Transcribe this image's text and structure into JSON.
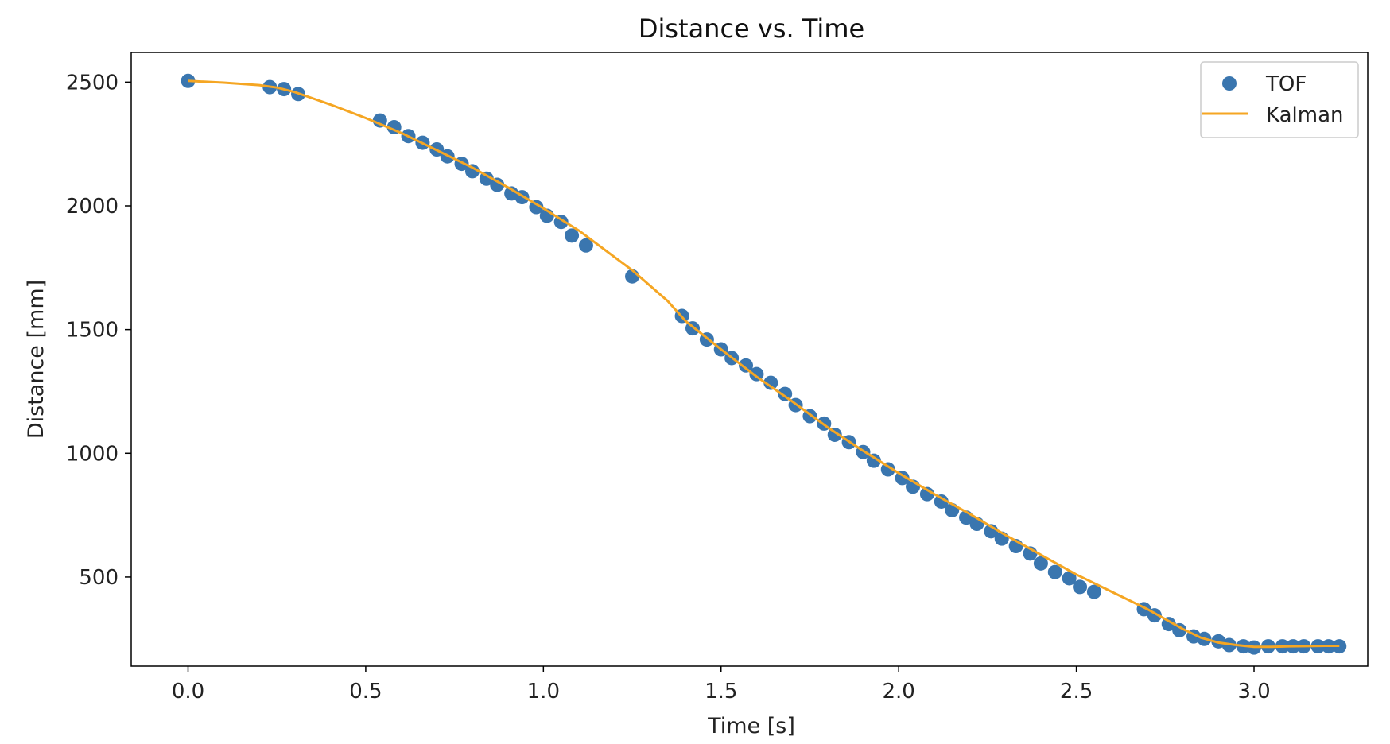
{
  "chart_data": {
    "type": "scatter",
    "title": "Distance vs. Time",
    "xlabel": "Time [s]",
    "ylabel": "Distance [mm]",
    "xlim": [
      -0.16,
      3.32
    ],
    "ylim": [
      140,
      2620
    ],
    "x_ticks": [
      0.0,
      0.5,
      1.0,
      1.5,
      2.0,
      2.5,
      3.0
    ],
    "x_tick_labels": [
      "0.0",
      "0.5",
      "1.0",
      "1.5",
      "2.0",
      "2.5",
      "3.0"
    ],
    "y_ticks": [
      500,
      1000,
      1500,
      2000,
      2500
    ],
    "y_tick_labels": [
      "500",
      "1000",
      "1500",
      "2000",
      "2500"
    ],
    "grid": false,
    "legend_position": "top-right",
    "series": [
      {
        "name": "TOF",
        "kind": "scatter",
        "color": "#3a76af",
        "x": [
          0.0,
          0.23,
          0.27,
          0.31,
          0.54,
          0.58,
          0.62,
          0.66,
          0.7,
          0.73,
          0.77,
          0.8,
          0.84,
          0.87,
          0.91,
          0.94,
          0.98,
          1.01,
          1.05,
          1.08,
          1.12,
          1.25,
          1.39,
          1.42,
          1.46,
          1.5,
          1.53,
          1.57,
          1.6,
          1.64,
          1.68,
          1.71,
          1.75,
          1.79,
          1.82,
          1.86,
          1.9,
          1.93,
          1.97,
          2.01,
          2.04,
          2.08,
          2.12,
          2.15,
          2.19,
          2.22,
          2.26,
          2.29,
          2.33,
          2.37,
          2.4,
          2.44,
          2.48,
          2.51,
          2.55,
          2.69,
          2.72,
          2.76,
          2.79,
          2.83,
          2.86,
          2.9,
          2.93,
          2.97,
          3.0,
          3.04,
          3.08,
          3.11,
          3.14,
          3.18,
          3.21,
          3.24
        ],
        "y": [
          2505,
          2480,
          2472,
          2452,
          2345,
          2318,
          2282,
          2255,
          2228,
          2200,
          2170,
          2140,
          2110,
          2085,
          2050,
          2035,
          1995,
          1960,
          1935,
          1880,
          1840,
          1715,
          1555,
          1505,
          1460,
          1420,
          1385,
          1355,
          1320,
          1285,
          1240,
          1195,
          1150,
          1120,
          1075,
          1045,
          1005,
          970,
          935,
          900,
          865,
          835,
          805,
          770,
          740,
          715,
          685,
          655,
          625,
          595,
          555,
          520,
          495,
          460,
          440,
          370,
          345,
          310,
          285,
          260,
          250,
          240,
          225,
          220,
          215,
          220,
          220,
          220,
          220,
          220,
          220,
          220
        ]
      },
      {
        "name": "Kalman",
        "kind": "line",
        "color": "#f5a623",
        "x": [
          0.0,
          0.1,
          0.2,
          0.25,
          0.3,
          0.4,
          0.5,
          0.6,
          0.7,
          0.8,
          0.9,
          1.0,
          1.1,
          1.25,
          1.35,
          1.4,
          1.5,
          1.6,
          1.7,
          1.8,
          1.9,
          2.0,
          2.1,
          2.2,
          2.3,
          2.4,
          2.5,
          2.6,
          2.7,
          2.8,
          2.85,
          2.9,
          2.95,
          3.0,
          3.05,
          3.1,
          3.2,
          3.24
        ],
        "y": [
          2505,
          2498,
          2488,
          2478,
          2460,
          2410,
          2355,
          2295,
          2225,
          2155,
          2075,
          1990,
          1900,
          1740,
          1615,
          1535,
          1420,
          1310,
          1210,
          1105,
          1010,
          920,
          835,
          755,
          670,
          590,
          510,
          440,
          370,
          290,
          255,
          235,
          225,
          218,
          218,
          220,
          222,
          222
        ]
      }
    ]
  }
}
